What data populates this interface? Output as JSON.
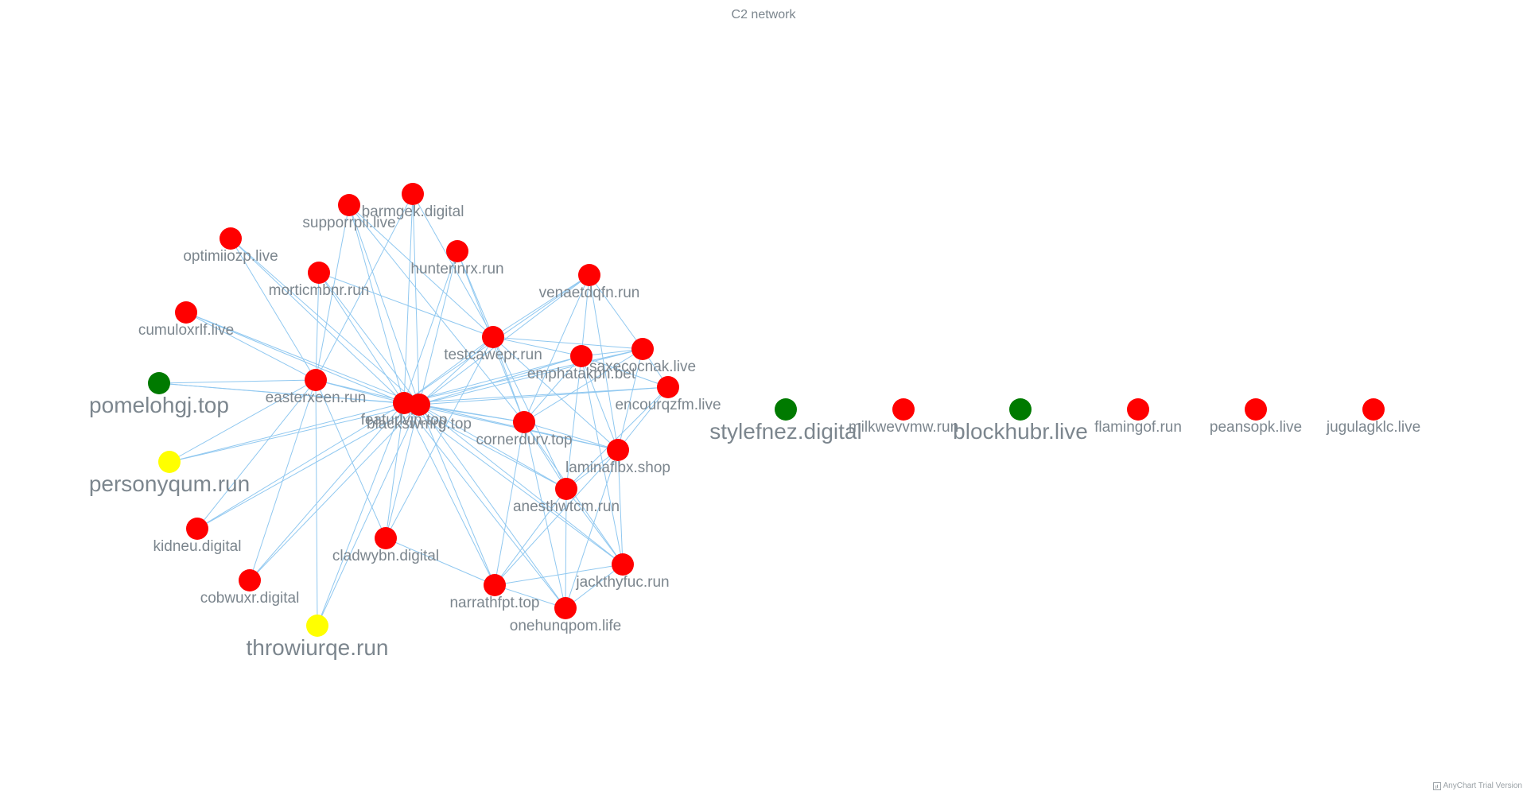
{
  "title": "C2 network",
  "credits": "AnyChart Trial Version",
  "colors": {
    "edge": "#90c8f0",
    "red": "#ff0000",
    "green": "#007a00",
    "yellow": "#ffff00",
    "label": "#7c868e"
  },
  "nodes": [
    {
      "id": "barmgek.digital",
      "group": "red"
    },
    {
      "id": "supporrpii.live",
      "group": "red"
    },
    {
      "id": "optimiiozp.live",
      "group": "red"
    },
    {
      "id": "hunterinrx.run",
      "group": "red"
    },
    {
      "id": "morticmbnr.run",
      "group": "red"
    },
    {
      "id": "venaetdqfn.run",
      "group": "red"
    },
    {
      "id": "cumuloxrlf.live",
      "group": "red"
    },
    {
      "id": "testcawepr.run",
      "group": "red"
    },
    {
      "id": "emphatakpn.bet",
      "group": "red"
    },
    {
      "id": "saxecocnak.live",
      "group": "red"
    },
    {
      "id": "pomelohgj.top",
      "group": "green"
    },
    {
      "id": "easterxeen.run",
      "group": "red"
    },
    {
      "id": "encourqzfm.live",
      "group": "red"
    },
    {
      "id": "featurlvjn.top",
      "group": "red"
    },
    {
      "id": "blackswmrg.top",
      "group": "red"
    },
    {
      "id": "cornerdurv.top",
      "group": "red"
    },
    {
      "id": "laminaflbx.shop",
      "group": "red"
    },
    {
      "id": "personyqum.run",
      "group": "yellow"
    },
    {
      "id": "anesthwtcm.run",
      "group": "red"
    },
    {
      "id": "kidneu.digital",
      "group": "red"
    },
    {
      "id": "cladwybn.digital",
      "group": "red"
    },
    {
      "id": "jackthyfuc.run",
      "group": "red"
    },
    {
      "id": "cobwuxr.digital",
      "group": "red"
    },
    {
      "id": "narrathfpt.top",
      "group": "red"
    },
    {
      "id": "onehunqpom.life",
      "group": "red"
    },
    {
      "id": "throwiurqe.run",
      "group": "yellow"
    },
    {
      "id": "stylefnez.digital",
      "group": "green"
    },
    {
      "id": "milkwevvmw.run",
      "group": "red"
    },
    {
      "id": "blockhubr.live",
      "group": "green"
    },
    {
      "id": "flamingof.run",
      "group": "red"
    },
    {
      "id": "peansopk.live",
      "group": "red"
    },
    {
      "id": "jugulagklc.live",
      "group": "red"
    }
  ],
  "edges": [
    [
      "featurlvjn.top",
      "barmgek.digital"
    ],
    [
      "blackswmrg.top",
      "barmgek.digital"
    ],
    [
      "featurlvjn.top",
      "supporrpii.live"
    ],
    [
      "blackswmrg.top",
      "supporrpii.live"
    ],
    [
      "featurlvjn.top",
      "optimiiozp.live"
    ],
    [
      "blackswmrg.top",
      "optimiiozp.live"
    ],
    [
      "featurlvjn.top",
      "hunterinrx.run"
    ],
    [
      "blackswmrg.top",
      "hunterinrx.run"
    ],
    [
      "featurlvjn.top",
      "morticmbnr.run"
    ],
    [
      "blackswmrg.top",
      "morticmbnr.run"
    ],
    [
      "featurlvjn.top",
      "venaetdqfn.run"
    ],
    [
      "blackswmrg.top",
      "venaetdqfn.run"
    ],
    [
      "featurlvjn.top",
      "cumuloxrlf.live"
    ],
    [
      "blackswmrg.top",
      "cumuloxrlf.live"
    ],
    [
      "featurlvjn.top",
      "testcawepr.run"
    ],
    [
      "blackswmrg.top",
      "testcawepr.run"
    ],
    [
      "featurlvjn.top",
      "emphatakpn.bet"
    ],
    [
      "blackswmrg.top",
      "emphatakpn.bet"
    ],
    [
      "featurlvjn.top",
      "saxecocnak.live"
    ],
    [
      "blackswmrg.top",
      "saxecocnak.live"
    ],
    [
      "featurlvjn.top",
      "pomelohgj.top"
    ],
    [
      "blackswmrg.top",
      "pomelohgj.top"
    ],
    [
      "featurlvjn.top",
      "easterxeen.run"
    ],
    [
      "blackswmrg.top",
      "easterxeen.run"
    ],
    [
      "featurlvjn.top",
      "encourqzfm.live"
    ],
    [
      "blackswmrg.top",
      "encourqzfm.live"
    ],
    [
      "featurlvjn.top",
      "cornerdurv.top"
    ],
    [
      "blackswmrg.top",
      "cornerdurv.top"
    ],
    [
      "featurlvjn.top",
      "laminaflbx.shop"
    ],
    [
      "blackswmrg.top",
      "laminaflbx.shop"
    ],
    [
      "featurlvjn.top",
      "personyqum.run"
    ],
    [
      "blackswmrg.top",
      "personyqum.run"
    ],
    [
      "featurlvjn.top",
      "anesthwtcm.run"
    ],
    [
      "blackswmrg.top",
      "anesthwtcm.run"
    ],
    [
      "featurlvjn.top",
      "kidneu.digital"
    ],
    [
      "blackswmrg.top",
      "kidneu.digital"
    ],
    [
      "featurlvjn.top",
      "cladwybn.digital"
    ],
    [
      "blackswmrg.top",
      "cladwybn.digital"
    ],
    [
      "featurlvjn.top",
      "jackthyfuc.run"
    ],
    [
      "blackswmrg.top",
      "jackthyfuc.run"
    ],
    [
      "featurlvjn.top",
      "cobwuxr.digital"
    ],
    [
      "blackswmrg.top",
      "cobwuxr.digital"
    ],
    [
      "featurlvjn.top",
      "narrathfpt.top"
    ],
    [
      "blackswmrg.top",
      "narrathfpt.top"
    ],
    [
      "featurlvjn.top",
      "onehunqpom.life"
    ],
    [
      "blackswmrg.top",
      "onehunqpom.life"
    ],
    [
      "featurlvjn.top",
      "throwiurqe.run"
    ],
    [
      "blackswmrg.top",
      "throwiurqe.run"
    ],
    [
      "easterxeen.run",
      "cumuloxrlf.live"
    ],
    [
      "easterxeen.run",
      "pomelohgj.top"
    ],
    [
      "easterxeen.run",
      "personyqum.run"
    ],
    [
      "easterxeen.run",
      "kidneu.digital"
    ],
    [
      "easterxeen.run",
      "cobwuxr.digital"
    ],
    [
      "easterxeen.run",
      "throwiurqe.run"
    ],
    [
      "easterxeen.run",
      "optimiiozp.live"
    ],
    [
      "easterxeen.run",
      "morticmbnr.run"
    ],
    [
      "easterxeen.run",
      "supporrpii.live"
    ],
    [
      "easterxeen.run",
      "barmgek.digital"
    ],
    [
      "easterxeen.run",
      "cladwybn.digital"
    ],
    [
      "barmgek.digital",
      "testcawepr.run"
    ],
    [
      "supporrpii.live",
      "testcawepr.run"
    ],
    [
      "hunterinrx.run",
      "testcawepr.run"
    ],
    [
      "morticmbnr.run",
      "testcawepr.run"
    ],
    [
      "hunterinrx.run",
      "cornerdurv.top"
    ],
    [
      "supporrpii.live",
      "cornerdurv.top"
    ],
    [
      "testcawepr.run",
      "venaetdqfn.run"
    ],
    [
      "testcawepr.run",
      "emphatakpn.bet"
    ],
    [
      "testcawepr.run",
      "saxecocnak.live"
    ],
    [
      "testcawepr.run",
      "cornerdurv.top"
    ],
    [
      "testcawepr.run",
      "laminaflbx.shop"
    ],
    [
      "testcawepr.run",
      "anesthwtcm.run"
    ],
    [
      "venaetdqfn.run",
      "emphatakpn.bet"
    ],
    [
      "venaetdqfn.run",
      "saxecocnak.live"
    ],
    [
      "venaetdqfn.run",
      "cornerdurv.top"
    ],
    [
      "venaetdqfn.run",
      "laminaflbx.shop"
    ],
    [
      "emphatakpn.bet",
      "saxecocnak.live"
    ],
    [
      "emphatakpn.bet",
      "encourqzfm.live"
    ],
    [
      "emphatakpn.bet",
      "cornerdurv.top"
    ],
    [
      "emphatakpn.bet",
      "laminaflbx.shop"
    ],
    [
      "emphatakpn.bet",
      "anesthwtcm.run"
    ],
    [
      "emphatakpn.bet",
      "jackthyfuc.run"
    ],
    [
      "saxecocnak.live",
      "encourqzfm.live"
    ],
    [
      "saxecocnak.live",
      "laminaflbx.shop"
    ],
    [
      "saxecocnak.live",
      "cornerdurv.top"
    ],
    [
      "encourqzfm.live",
      "laminaflbx.shop"
    ],
    [
      "encourqzfm.live",
      "anesthwtcm.run"
    ],
    [
      "cornerdurv.top",
      "laminaflbx.shop"
    ],
    [
      "cornerdurv.top",
      "anesthwtcm.run"
    ],
    [
      "cornerdurv.top",
      "narrathfpt.top"
    ],
    [
      "cornerdurv.top",
      "onehunqpom.life"
    ],
    [
      "cornerdurv.top",
      "jackthyfuc.run"
    ],
    [
      "laminaflbx.shop",
      "anesthwtcm.run"
    ],
    [
      "laminaflbx.shop",
      "jackthyfuc.run"
    ],
    [
      "laminaflbx.shop",
      "narrathfpt.top"
    ],
    [
      "laminaflbx.shop",
      "onehunqpom.life"
    ],
    [
      "anesthwtcm.run",
      "jackthyfuc.run"
    ],
    [
      "anesthwtcm.run",
      "narrathfpt.top"
    ],
    [
      "anesthwtcm.run",
      "onehunqpom.life"
    ],
    [
      "jackthyfuc.run",
      "narrathfpt.top"
    ],
    [
      "jackthyfuc.run",
      "onehunqpom.life"
    ],
    [
      "narrathfpt.top",
      "onehunqpom.life"
    ],
    [
      "cladwybn.digital",
      "narrathfpt.top"
    ],
    [
      "cladwybn.digital",
      "testcawepr.run"
    ]
  ]
}
